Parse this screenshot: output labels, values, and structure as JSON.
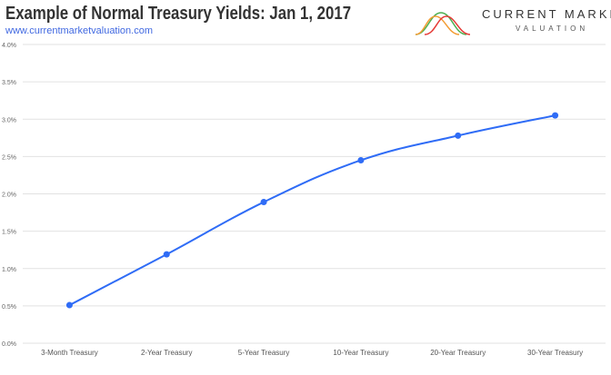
{
  "header": {
    "title": "Example of Normal Treasury Yields: Jan 1, 2017",
    "url": "www.currentmarketvaluation.com"
  },
  "logo": {
    "name": "CURRENT MARKET",
    "sub": "VALUATION"
  },
  "chart_data": {
    "type": "line",
    "categories": [
      "3-Month Treasury",
      "2-Year Treasury",
      "5-Year Treasury",
      "10-Year Treasury",
      "20-Year Treasury",
      "30-Year Treasury"
    ],
    "values": [
      0.51,
      1.19,
      1.89,
      2.45,
      2.78,
      3.05
    ],
    "ylim": [
      0,
      4
    ],
    "yticks": [
      "0.0%",
      "0.5%",
      "1.0%",
      "1.5%",
      "2.0%",
      "2.5%",
      "3.0%",
      "3.5%",
      "4.0%"
    ],
    "grid": true,
    "smooth": true,
    "color": "#2f6cf6"
  }
}
